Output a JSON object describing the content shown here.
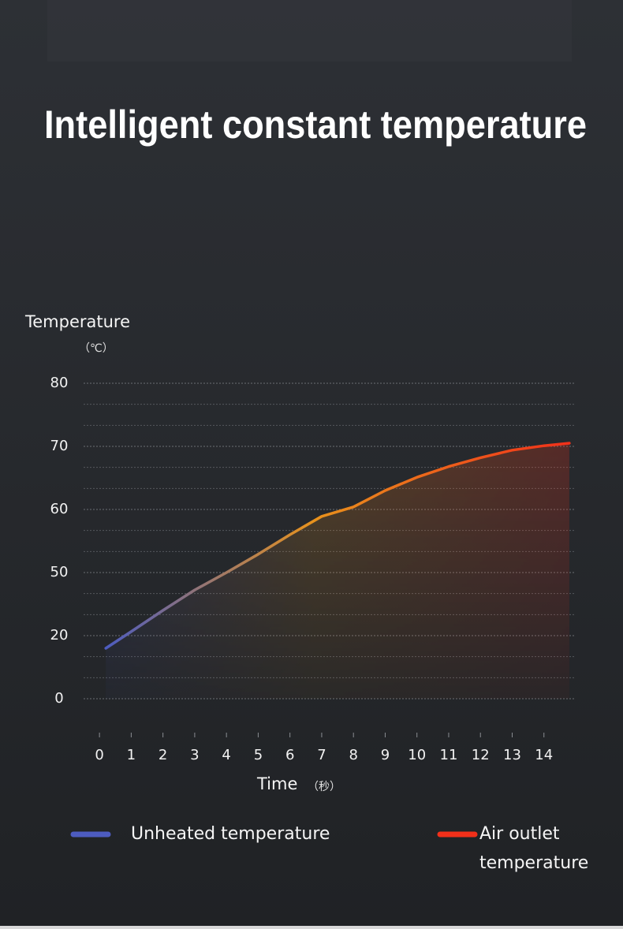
{
  "chart_data": {
    "type": "line",
    "title": "Intelligent constant temperature",
    "y_label": "Temperature",
    "y_unit": "（℃）",
    "x_label": "Time",
    "x_unit": "（秒）",
    "x": [
      0.2,
      1,
      2,
      3,
      4,
      5,
      6,
      7,
      8,
      9,
      10,
      11,
      12,
      13,
      14,
      14.8
    ],
    "series": [
      {
        "name": "Unheated temperature",
        "color": "#4d5cc0",
        "values": [
          16,
          21.9,
          32,
          41.7,
          50,
          52.9,
          56,
          58.9,
          60.4,
          63,
          65.1,
          66.8,
          68.2,
          69.4,
          70.1,
          70.5
        ]
      }
    ],
    "legend": [
      {
        "name": "Unheated temperature",
        "color": "#4d5cc0"
      },
      {
        "name": "Air outlet temperature",
        "color": "#f2301a"
      }
    ],
    "line_gradient": [
      "#4d5cc0",
      "#e8921c",
      "#f2301a"
    ],
    "xlim": [
      -0.5,
      15
    ],
    "xticks": [
      0,
      1,
      2,
      3,
      4,
      5,
      6,
      7,
      8,
      9,
      10,
      11,
      12,
      13,
      14
    ],
    "ylim": [
      0,
      80
    ],
    "yticks": [
      0,
      20,
      50,
      60,
      70,
      80
    ],
    "grid": true
  }
}
